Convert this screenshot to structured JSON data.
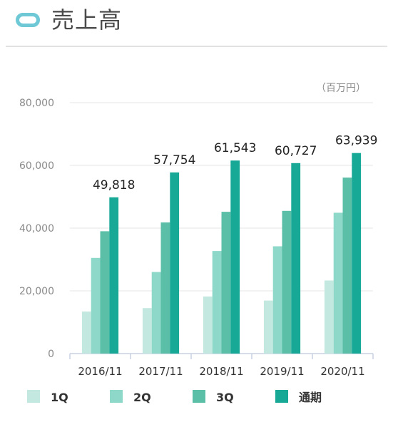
{
  "header": {
    "title": "売上高",
    "icon": "pill-ring-icon",
    "icon_color": "#6ec8d6"
  },
  "chart_data": {
    "type": "bar",
    "title": "売上高",
    "unit_label": "（百万円）",
    "categories": [
      "2016/11",
      "2017/11",
      "2018/11",
      "2019/11",
      "2020/11"
    ],
    "series": [
      {
        "name": "1Q",
        "color": "#c3e8df",
        "values": [
          13400,
          14500,
          18200,
          16900,
          23300
        ]
      },
      {
        "name": "2Q",
        "color": "#8dd8c9",
        "values": [
          30500,
          26000,
          32700,
          34200,
          44900
        ]
      },
      {
        "name": "3Q",
        "color": "#5bbfa8",
        "values": [
          39000,
          41800,
          45200,
          45500,
          56100
        ]
      },
      {
        "name": "通期",
        "color": "#17a996",
        "values": [
          49818,
          57754,
          61543,
          60727,
          63939
        ]
      }
    ],
    "data_labels": [
      "49,818",
      "57,754",
      "61,543",
      "60,727",
      "63,939"
    ],
    "y_ticks": [
      "0",
      "20,000",
      "40,000",
      "60,000",
      "80,000"
    ],
    "ylim": [
      0,
      80000
    ],
    "grid": true,
    "legend_position": "bottom-left"
  }
}
